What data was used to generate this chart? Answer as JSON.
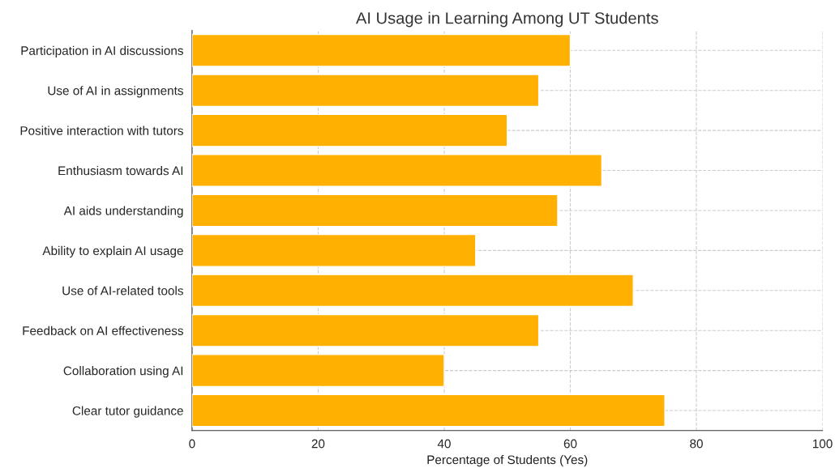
{
  "chart_data": {
    "type": "bar",
    "orientation": "horizontal",
    "title": "AI Usage in Learning Among UT Students",
    "xlabel": "Percentage of Students (Yes)",
    "categories": [
      "Participation in AI discussions",
      "Use of AI in assignments",
      "Positive interaction with tutors",
      "Enthusiasm towards AI",
      "AI aids understanding",
      "Ability to explain AI usage",
      "Use of AI-related tools",
      "Feedback on AI effectiveness",
      "Collaboration using AI",
      "Clear tutor guidance"
    ],
    "values": [
      60,
      55,
      50,
      65,
      58,
      45,
      70,
      55,
      40,
      75
    ],
    "color": "#ffb000",
    "xlim": [
      0,
      100
    ],
    "xticks": [
      0,
      20,
      40,
      60,
      80,
      100
    ],
    "grid": true
  }
}
